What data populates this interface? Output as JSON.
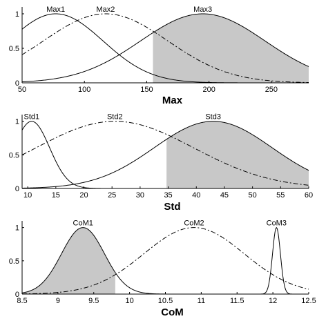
{
  "chart_data": [
    {
      "type": "line",
      "xlabel": "Max",
      "xlim": [
        50,
        280
      ],
      "ylim": [
        0,
        1.1
      ],
      "xticks": [
        50,
        100,
        150,
        200,
        250
      ],
      "yticks": [
        0,
        0.5,
        1
      ],
      "ytick_labels": [
        "0",
        "0.5",
        "1"
      ],
      "series": [
        {
          "name": "Max1",
          "style": "solid",
          "center": 77,
          "sigma": 38,
          "label_x": 77
        },
        {
          "name": "Max2",
          "style": "dashdot",
          "center": 117,
          "sigma": 50,
          "label_x": 117
        },
        {
          "name": "Max3",
          "style": "solid",
          "center": 195,
          "sigma": 50,
          "label_x": 195
        }
      ],
      "shaded": {
        "series": "Max3",
        "from": 155
      }
    },
    {
      "type": "line",
      "xlabel": "Std",
      "xlim": [
        9,
        60
      ],
      "ylim": [
        0,
        1.1
      ],
      "xticks": [
        10,
        15,
        20,
        25,
        30,
        35,
        40,
        45,
        50,
        55,
        60
      ],
      "yticks": [
        0,
        0.5,
        1
      ],
      "ytick_labels": [
        "0",
        "0.5",
        "1"
      ],
      "series": [
        {
          "name": "Std1",
          "style": "solid",
          "center": 10.7,
          "sigma": 3.2,
          "label_x": 10.7
        },
        {
          "name": "Std2",
          "style": "dashdot",
          "center": 25.5,
          "sigma": 14,
          "label_x": 25.5
        },
        {
          "name": "Std3",
          "style": "solid",
          "center": 43,
          "sigma": 10.5,
          "label_x": 43
        }
      ],
      "shaded": {
        "series": "Std3",
        "from": 34.7
      }
    },
    {
      "type": "line",
      "xlabel": "CoM",
      "xlim": [
        8.5,
        12.5
      ],
      "ylim": [
        0,
        1.1
      ],
      "xticks": [
        8.5,
        9,
        9.5,
        10,
        10.5,
        11,
        11.5,
        12,
        12.5
      ],
      "yticks": [
        0,
        0.5,
        1
      ],
      "ytick_labels": [
        "0",
        "0.5",
        "1"
      ],
      "series": [
        {
          "name": "CoM1",
          "style": "solid",
          "center": 9.35,
          "sigma": 0.3,
          "label_x": 9.35
        },
        {
          "name": "CoM2",
          "style": "dashdot",
          "center": 10.9,
          "sigma": 0.7,
          "label_x": 10.9
        },
        {
          "name": "CoM3",
          "style": "solid",
          "center": 12.05,
          "sigma": 0.055,
          "label_x": 12.05
        }
      ],
      "shaded": {
        "series": "CoM1",
        "from": 8.5,
        "to": 9.8
      }
    }
  ]
}
